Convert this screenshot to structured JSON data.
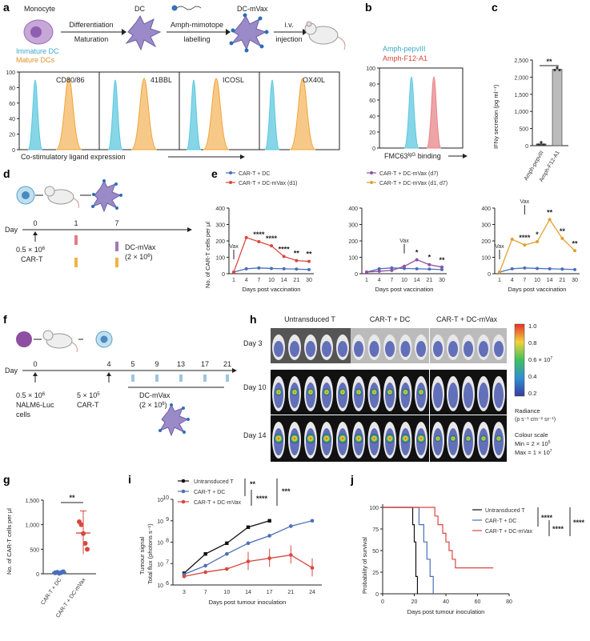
{
  "colors": {
    "cyan": "#5ec8e0",
    "orange": "#f2a53a",
    "blue": "#4a6fb8",
    "red": "#d9473f",
    "purple": "#8e4fa0",
    "gold": "#e2a12e",
    "black": "#111111",
    "pink": "#e8848a",
    "grey": "#bbbbbb"
  },
  "panel_a": {
    "label": "a",
    "cells": [
      "Monocyte",
      "DC",
      "DC-mVax"
    ],
    "arrows": [
      {
        "top": "Differentiation",
        "bottom": "Maturation"
      },
      {
        "top": "Amph-mimotope",
        "bottom": "labelling"
      },
      {
        "top": "i.v.",
        "bottom": "injection"
      }
    ],
    "legend": [
      {
        "name": "Immature DC",
        "color": "#5ec8e0"
      },
      {
        "name": "Mature DCs",
        "color": "#f2a53a"
      }
    ],
    "hist_labels": [
      "CD80/86",
      "41BBL",
      "ICOSL",
      "OX40L"
    ],
    "yticks": [
      "100",
      "80",
      "60",
      "40",
      "20",
      "0"
    ],
    "xlabel": "Co-stimulatory ligand expression"
  },
  "panel_b": {
    "label": "b",
    "legend": [
      {
        "name": "Amph-pepvIII",
        "color": "#5ec8e0"
      },
      {
        "name": "Amph-F12-A1",
        "color": "#e8848a"
      }
    ],
    "yticks": [
      "100",
      "80",
      "60",
      "40",
      "20",
      "0"
    ],
    "xlabel_main": "FMC63",
    "xlabel_sup": "IgG",
    "xlabel_end": " binding"
  },
  "panel_c": {
    "label": "c",
    "ylabel": "IFNγ secretion (pg ml⁻¹)",
    "yticks": [
      "0",
      "500",
      "1,000",
      "1,500",
      "2,000",
      "2,500"
    ],
    "sig": "**",
    "chart_data": {
      "type": "bar",
      "categories": [
        "Amph-pepvIII",
        "Amph-F12-A1"
      ],
      "values": [
        50,
        2230
      ],
      "ylim": [
        0,
        2500
      ]
    }
  },
  "panel_d": {
    "label": "d",
    "day_label": "Day",
    "days": [
      "0",
      "1",
      "7"
    ],
    "note1_line1": "0.5 × 10",
    "note1_sup": "6",
    "note1_line2": "CAR-T",
    "note2_line1": "DC-mVax",
    "note2_line2": "(2 × 10",
    "note2_sup": "6",
    "note2_end": ")"
  },
  "panel_e": {
    "label": "e",
    "legend": [
      {
        "name": "CAR-T + DC",
        "color": "#4a6fb8"
      },
      {
        "name": "CAR-T + DC-mVax (d1)",
        "color": "#d9473f"
      },
      {
        "name": "CAR-T + DC-mVax (d7)",
        "color": "#8e4fa0"
      },
      {
        "name": "CAR-T + DC-mVax (d1, d7)",
        "color": "#e2a12e"
      }
    ],
    "ylabel": "No. of CAR-T cells per μl",
    "xlabel": "Days post vaccination",
    "vax": "Vax",
    "chart_data": {
      "type": "line",
      "x": [
        1,
        4,
        7,
        10,
        14,
        21,
        30
      ],
      "ylim": [
        0,
        400
      ],
      "yticks": [
        "0",
        "100",
        "200",
        "300",
        "400"
      ],
      "subplots": [
        {
          "series": [
            {
              "name": "CAR-T + DC",
              "values": [
                10,
                30,
                35,
                32,
                30,
                28,
                25
              ]
            },
            {
              "name": "CAR-T + DC-mVax (d1)",
              "values": [
                10,
                220,
                195,
                170,
                105,
                80,
                75
              ]
            }
          ],
          "sigs": [
            "****",
            "****",
            "****",
            "**",
            "**"
          ]
        },
        {
          "series": [
            {
              "name": "CAR-T + DC",
              "values": [
                10,
                30,
                35,
                32,
                30,
                28,
                25
              ]
            },
            {
              "name": "CAR-T + DC-mVax (d7)",
              "values": [
                10,
                15,
                20,
                45,
                85,
                55,
                40
              ]
            }
          ],
          "sigs": [
            "*",
            "*",
            "**"
          ]
        },
        {
          "series": [
            {
              "name": "CAR-T + DC",
              "values": [
                10,
                30,
                35,
                32,
                30,
                28,
                25
              ]
            },
            {
              "name": "CAR-T + DC-mVax (d1, d7)",
              "values": [
                10,
                210,
                175,
                195,
                330,
                215,
                140
              ]
            }
          ],
          "sigs": [
            "****",
            "*",
            "**",
            "**",
            "**"
          ]
        }
      ]
    }
  },
  "panel_f": {
    "label": "f",
    "day_label": "Day",
    "days": [
      "0",
      "4",
      "5",
      "9",
      "13",
      "17",
      "21"
    ],
    "note1_l1": "0.5 × 10",
    "note1_sup": "6",
    "note1_l2": "NALM6-Luc",
    "note1_l3": "cells",
    "note2_l1": "5 × 10",
    "note2_sup": "5",
    "note2_l2": "CAR-T",
    "note3_l1": "DC-mVax",
    "note3_l2": "(2 × 10",
    "note3_sup": "6",
    "note3_end": ")"
  },
  "panel_h": {
    "label": "h",
    "groups": [
      "Untransduced T",
      "CAR-T + DC",
      "CAR-T + DC-mVax"
    ],
    "days": [
      "Day 3",
      "Day 10",
      "Day 14"
    ],
    "scale_ticks": [
      "1.0",
      "0.8",
      "0.6 × 10",
      "0.4",
      "0.2"
    ],
    "scale_sup": "7",
    "radiance": "Radiance",
    "radiance_units": "(p s⁻¹ cm⁻² sr⁻¹)",
    "colour_scale": "Colour scale",
    "min": "Min = 2 × 10",
    "min_sup": "5",
    "max": "Max = 1 × 10",
    "max_sup": "7"
  },
  "panel_g": {
    "label": "g",
    "ylabel": "No. of CAR-T cells per μl",
    "yticks": [
      "0",
      "500",
      "1,000",
      "1,500"
    ],
    "sig": "**",
    "chart_data": {
      "type": "scatter",
      "categories": [
        "CAR-T + DC",
        "CAR-T + DC-mVax"
      ],
      "points": [
        [
          20,
          30,
          10,
          25,
          40
        ],
        [
          1060,
          1000,
          820,
          620,
          500
        ]
      ],
      "means": [
        25,
        830
      ],
      "sd_high": [
        40,
        1280
      ],
      "sd_low": [
        10,
        400
      ],
      "ylim": [
        0,
        1500
      ]
    }
  },
  "panel_i": {
    "label": "i",
    "legend": [
      {
        "name": "Untransduced T",
        "color": "#111111"
      },
      {
        "name": "CAR-T + DC",
        "color": "#4a6fb8"
      },
      {
        "name": "CAR-T + DC-mVax",
        "color": "#d9473f"
      }
    ],
    "sigs": [
      "**",
      "****",
      "***"
    ],
    "ylabel1": "Tumour signal",
    "ylabel2": "Total flux (photons s⁻¹)",
    "xlabel": "Days post tumour inoculation",
    "yticks": [
      "10",
      "10",
      "10",
      "10",
      "10"
    ],
    "ytick_sups": [
      "6",
      "7",
      "8",
      "9",
      "10"
    ],
    "chart_data": {
      "type": "line",
      "x": [
        3,
        7,
        10,
        14,
        17,
        21,
        24
      ],
      "yscale": "log",
      "ylim": [
        6,
        10
      ],
      "series": [
        {
          "name": "Untransduced T",
          "log10_values": [
            6.55,
            7.45,
            7.95,
            8.7,
            9.0,
            null,
            null
          ]
        },
        {
          "name": "CAR-T + DC",
          "log10_values": [
            6.5,
            6.9,
            7.45,
            7.95,
            8.3,
            8.75,
            9.0
          ]
        },
        {
          "name": "CAR-T + DC-mVax",
          "log10_values": [
            6.4,
            6.6,
            6.75,
            7.1,
            7.25,
            7.4,
            6.8
          ]
        }
      ]
    }
  },
  "panel_j": {
    "label": "j",
    "legend": [
      {
        "name": "Untransduced T",
        "color": "#111111"
      },
      {
        "name": "CAR-T + DC",
        "color": "#4a6fb8"
      },
      {
        "name": "CAR-T + DC-mVax",
        "color": "#d9473f"
      }
    ],
    "sigs": [
      "****",
      "****",
      "****"
    ],
    "ylabel": "Probability of survival",
    "xlabel": "Days post tumour inoculation",
    "yticks": [
      "0",
      "25",
      "50",
      "75",
      "100"
    ],
    "xticks": [
      "0",
      "20",
      "40",
      "60",
      "80"
    ],
    "chart_data": {
      "type": "line",
      "step": true,
      "xlim": [
        0,
        80
      ],
      "ylim": [
        0,
        100
      ],
      "series": [
        {
          "name": "Untransduced T",
          "points": [
            [
              0,
              100
            ],
            [
              19,
              100
            ],
            [
              19,
              80
            ],
            [
              20,
              80
            ],
            [
              20,
              60
            ],
            [
              21,
              60
            ],
            [
              21,
              20
            ],
            [
              22,
              20
            ],
            [
              22,
              0
            ]
          ]
        },
        {
          "name": "CAR-T + DC",
          "points": [
            [
              0,
              100
            ],
            [
              23,
              100
            ],
            [
              23,
              80
            ],
            [
              26,
              80
            ],
            [
              26,
              60
            ],
            [
              28,
              60
            ],
            [
              28,
              40
            ],
            [
              30,
              40
            ],
            [
              30,
              20
            ],
            [
              32,
              20
            ],
            [
              32,
              0
            ]
          ]
        },
        {
          "name": "CAR-T + DC-mVax",
          "points": [
            [
              0,
              100
            ],
            [
              33,
              100
            ],
            [
              33,
              90
            ],
            [
              35,
              90
            ],
            [
              35,
              80
            ],
            [
              38,
              80
            ],
            [
              38,
              70
            ],
            [
              40,
              70
            ],
            [
              40,
              60
            ],
            [
              42,
              60
            ],
            [
              42,
              50
            ],
            [
              44,
              50
            ],
            [
              44,
              40
            ],
            [
              46,
              40
            ],
            [
              46,
              30
            ],
            [
              70,
              30
            ]
          ]
        }
      ]
    }
  }
}
